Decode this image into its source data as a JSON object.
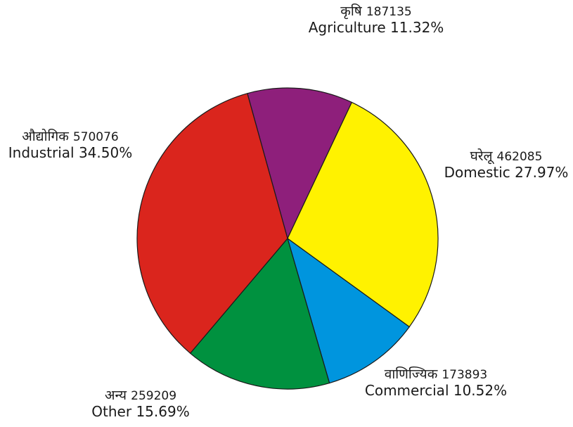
{
  "chart_data": {
    "type": "pie",
    "start_angle_deg": -15.5,
    "direction": "clockwise",
    "slices": [
      {
        "key": "agriculture",
        "hindi": "कृषि",
        "value": 187135,
        "label": "Agriculture",
        "percent": "11.32%",
        "color": "#8e1f7b"
      },
      {
        "key": "domestic",
        "hindi": "घरेलू",
        "value": 462085,
        "label": "Domestic",
        "percent": "27.97%",
        "color": "#fff200"
      },
      {
        "key": "commercial",
        "hindi": "वाणिज्यिक",
        "value": 173893,
        "label": "Commercial",
        "percent": "10.52%",
        "color": "#0095de"
      },
      {
        "key": "other",
        "hindi": "अन्य",
        "value": 259209,
        "label": "Other",
        "percent": "15.69%",
        "color": "#00913f"
      },
      {
        "key": "industrial",
        "hindi": "औद्योगिक",
        "value": 570076,
        "label": "Industrial",
        "percent": "34.50%",
        "color": "#da251d"
      }
    ]
  }
}
